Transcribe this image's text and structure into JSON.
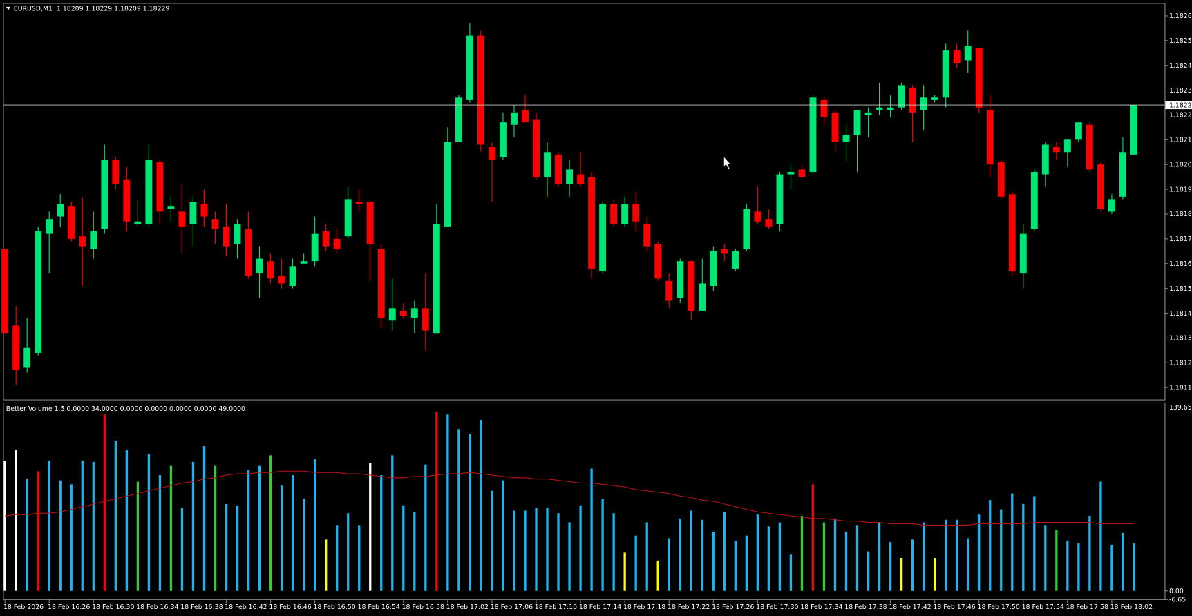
{
  "chart_data": [
    {
      "type": "candlestick",
      "title": "EURUSD,M1  1.18209 1.18229 1.18209 1.18229",
      "categories": [
        "18 Feb 2026",
        null,
        null,
        null,
        "18 Feb 16:26",
        null,
        null,
        null,
        "18 Feb 16:30",
        null,
        null,
        null,
        "18 Feb 16:34",
        null,
        null,
        null,
        "18 Feb 16:38",
        null,
        null,
        null,
        "18 Feb 16:42",
        null,
        null,
        null,
        "18 Feb 16:46",
        null,
        null,
        null,
        "18 Feb 16:50",
        null,
        null,
        null,
        "18 Feb 16:54",
        null,
        null,
        null,
        "18 Feb 16:58",
        null,
        null,
        null,
        "18 Feb 17:02",
        null,
        null,
        null,
        "18 Feb 17:06",
        null,
        null,
        null,
        "18 Feb 17:10",
        null,
        null,
        null,
        "18 Feb 17:14",
        null,
        null,
        null,
        "18 Feb 17:18",
        null,
        null,
        null,
        "18 Feb 17:22",
        null,
        null,
        null,
        "18 Feb 17:26",
        null,
        null,
        null,
        "18 Feb 17:30",
        null,
        null,
        null,
        "18 Feb 17:34",
        null,
        null,
        null,
        "18 Feb 17:38",
        null,
        null,
        null,
        "18 Feb 17:42",
        null,
        null,
        null,
        "18 Feb 17:46",
        null,
        null,
        null,
        "18 Feb 17:50",
        null,
        null,
        null,
        "18 Feb 17:54",
        null,
        null,
        null,
        "18 Feb 17:58",
        null,
        null,
        null,
        "18 Feb 18:02",
        null,
        null
      ],
      "open": [
        1.18171,
        1.1814,
        1.18123,
        1.18129,
        1.18177,
        1.18184,
        1.18188,
        1.18176,
        1.18171,
        1.18179,
        1.18207,
        1.18199,
        1.18181,
        1.18181,
        1.18206,
        1.18187,
        1.18186,
        1.18181,
        1.18189,
        1.18183,
        1.1818,
        1.18173,
        1.18179,
        1.18161,
        1.18166,
        1.1816,
        1.18156,
        1.18165,
        1.18166,
        1.18178,
        1.18175,
        1.18176,
        1.1819,
        1.1819,
        1.18171,
        1.18142,
        1.18146,
        1.18143,
        1.18147,
        1.18137,
        1.1818,
        1.18214,
        1.18231,
        1.18257,
        1.18212,
        1.18208,
        1.18221,
        1.18227,
        1.18223,
        1.182,
        1.18209,
        1.18197,
        1.18201,
        1.182,
        1.18162,
        1.18189,
        1.18181,
        1.18189,
        1.18181,
        1.18173,
        1.18158,
        1.18151,
        1.18166,
        1.18146,
        1.18156,
        1.18171,
        1.18163,
        1.18171,
        1.18186,
        1.18183,
        1.18181,
        1.18201,
        1.18203,
        1.18202,
        1.18231,
        1.18226,
        1.18214,
        1.18217,
        1.18225,
        1.18227,
        1.18227,
        1.18228,
        1.18236,
        1.18227,
        1.18231,
        1.18232,
        1.18251,
        1.18247,
        1.18252,
        1.18227,
        1.18206,
        1.18193,
        1.18161,
        1.18179,
        1.18201,
        1.18212,
        1.1821,
        1.18215,
        1.18221,
        1.18205,
        1.18186,
        1.18192,
        1.18209
      ],
      "high": [
        1.18171,
        1.18148,
        1.18143,
        1.1818,
        1.18186,
        1.18193,
        1.1819,
        1.18192,
        1.18186,
        1.18213,
        1.18208,
        1.18204,
        1.18191,
        1.18213,
        1.18207,
        1.18192,
        1.18197,
        1.18192,
        1.18195,
        1.18186,
        1.18189,
        1.18183,
        1.18186,
        1.18172,
        1.18169,
        1.18167,
        1.18167,
        1.18169,
        1.18184,
        1.18181,
        1.18179,
        1.18196,
        1.18195,
        1.1819,
        1.18173,
        1.18159,
        1.18149,
        1.1815,
        1.18161,
        1.18189,
        1.1822,
        1.18233,
        1.18262,
        1.18259,
        1.18214,
        1.18226,
        1.18229,
        1.18233,
        1.18226,
        1.18214,
        1.1821,
        1.18207,
        1.1821,
        1.18202,
        1.1819,
        1.18191,
        1.18192,
        1.18194,
        1.18184,
        1.18174,
        1.18161,
        1.18167,
        1.18166,
        1.18167,
        1.18172,
        1.18173,
        1.18171,
        1.18189,
        1.18196,
        1.18187,
        1.18202,
        1.18205,
        1.18205,
        1.18233,
        1.18232,
        1.18227,
        1.18221,
        1.18227,
        1.18228,
        1.18238,
        1.18233,
        1.18238,
        1.18237,
        1.18237,
        1.18233,
        1.18254,
        1.18254,
        1.18259,
        1.18252,
        1.18233,
        1.18207,
        1.18194,
        1.18181,
        1.18203,
        1.18214,
        1.18214,
        1.18215,
        1.18222,
        1.18222,
        1.18206,
        1.18193,
        1.18216,
        1.18229
      ],
      "low": [
        1.18137,
        1.18116,
        1.18121,
        1.18128,
        1.18161,
        1.1818,
        1.18174,
        1.18156,
        1.18167,
        1.18177,
        1.18195,
        1.18178,
        1.1818,
        1.1818,
        1.18181,
        1.18182,
        1.18169,
        1.18172,
        1.1818,
        1.18173,
        1.18168,
        1.18167,
        1.18159,
        1.18151,
        1.18157,
        1.18155,
        1.18155,
        1.18165,
        1.18164,
        1.1817,
        1.18169,
        1.18175,
        1.18186,
        1.18158,
        1.18139,
        1.18138,
        1.18143,
        1.18137,
        1.1813,
        1.18137,
        1.1818,
        1.18214,
        1.1823,
        1.1821,
        1.1819,
        1.18207,
        1.18216,
        1.18222,
        1.18199,
        1.18192,
        1.18196,
        1.18192,
        1.18196,
        1.18159,
        1.18161,
        1.1818,
        1.1818,
        1.18178,
        1.1817,
        1.18158,
        1.18147,
        1.18149,
        1.18142,
        1.18146,
        1.18154,
        1.18166,
        1.18162,
        1.1817,
        1.18181,
        1.18179,
        1.18178,
        1.18195,
        1.182,
        1.18201,
        1.18221,
        1.1821,
        1.18206,
        1.18202,
        1.18216,
        1.18225,
        1.18224,
        1.18227,
        1.18214,
        1.18219,
        1.1823,
        1.18228,
        1.18244,
        1.18242,
        1.18226,
        1.182,
        1.18191,
        1.1816,
        1.18155,
        1.18178,
        1.18196,
        1.18207,
        1.18204,
        1.18214,
        1.18202,
        1.18186,
        1.18185,
        1.18191,
        1.18209
      ],
      "close": [
        1.18137,
        1.18122,
        1.18131,
        1.18178,
        1.18183,
        1.18189,
        1.18175,
        1.18172,
        1.18178,
        1.18207,
        1.18197,
        1.18182,
        1.18182,
        1.18207,
        1.18186,
        1.18188,
        1.1818,
        1.1819,
        1.18184,
        1.18179,
        1.18172,
        1.18181,
        1.1816,
        1.18167,
        1.18159,
        1.18157,
        1.18164,
        1.18166,
        1.18177,
        1.18172,
        1.18171,
        1.18191,
        1.18189,
        1.18173,
        1.18143,
        1.18147,
        1.18144,
        1.18147,
        1.18138,
        1.18181,
        1.18214,
        1.18232,
        1.18257,
        1.18213,
        1.18207,
        1.18222,
        1.18226,
        1.18222,
        1.182,
        1.1821,
        1.18197,
        1.18203,
        1.18197,
        1.18163,
        1.18189,
        1.18181,
        1.18189,
        1.18182,
        1.18172,
        1.18159,
        1.1815,
        1.18166,
        1.18146,
        1.18157,
        1.1817,
        1.18169,
        1.1817,
        1.18187,
        1.18182,
        1.1818,
        1.18201,
        1.18202,
        1.182,
        1.18232,
        1.18224,
        1.18214,
        1.18217,
        1.18227,
        1.18226,
        1.18228,
        1.18228,
        1.18237,
        1.18226,
        1.18232,
        1.18232,
        1.18251,
        1.18246,
        1.18253,
        1.18228,
        1.18205,
        1.18192,
        1.18162,
        1.18177,
        1.18202,
        1.18213,
        1.1821,
        1.18215,
        1.18222,
        1.18203,
        1.18187,
        1.18191,
        1.1821,
        1.18229
      ],
      "up_color": "#00e676",
      "down_color": "#ff0000",
      "ylim": [
        1.1811,
        1.1827
      ],
      "yticks": [
        1.18265,
        1.18255,
        1.18245,
        1.18235,
        1.18225,
        1.18215,
        1.18205,
        1.18195,
        1.18185,
        1.18175,
        1.18165,
        1.18155,
        1.18145,
        1.18135,
        1.18125,
        1.18115
      ],
      "current_price": 1.18229
    },
    {
      "type": "bar",
      "title": "Better Volume 1.5 0.0000 34.0000 0.0000 0.0000 0.0000 0.0000 49.0000",
      "series": [
        {
          "values": [
            99,
            107,
            85,
            91,
            99,
            84,
            81,
            99,
            98,
            134,
            114,
            107,
            83,
            104,
            88,
            95,
            63,
            98,
            110,
            95,
            66,
            65,
            92,
            95,
            103,
            80,
            88,
            70,
            100,
            39,
            50,
            59,
            50,
            97,
            88,
            103,
            65,
            60,
            96,
            136,
            134,
            123,
            119,
            130,
            76,
            84,
            61,
            61,
            63,
            63,
            59,
            52,
            65,
            93,
            70,
            59,
            29,
            42,
            52,
            23,
            40,
            55,
            61,
            54,
            45,
            60,
            38,
            42,
            58,
            49,
            52,
            28,
            57,
            81,
            52,
            55,
            45,
            50,
            30,
            52,
            37,
            25,
            39,
            52,
            25,
            54,
            54,
            40,
            58,
            69,
            62,
            74,
            66,
            72,
            50,
            46,
            38,
            36,
            57,
            83,
            35,
            44,
            36
          ],
          "colors": [
            "#ffffff",
            "#ffffff",
            "#1eb4f0",
            "#ff0000",
            "#1eb4f0",
            "#1eb4f0",
            "#1eb4f0",
            "#1eb4f0",
            "#1eb4f0",
            "#ff0000",
            "#1eb4f0",
            "#1eb4f0",
            "#32cd32",
            "#1eb4f0",
            "#1eb4f0",
            "#32cd32",
            "#1eb4f0",
            "#1eb4f0",
            "#1eb4f0",
            "#32cd32",
            "#1eb4f0",
            "#1eb4f0",
            "#1eb4f0",
            "#1eb4f0",
            "#32cd32",
            "#1eb4f0",
            "#1eb4f0",
            "#1eb4f0",
            "#1eb4f0",
            "#ffff00",
            "#1eb4f0",
            "#1eb4f0",
            "#1eb4f0",
            "#ffffff",
            "#1eb4f0",
            "#1eb4f0",
            "#1eb4f0",
            "#1eb4f0",
            "#1eb4f0",
            "#ff0000",
            "#1eb4f0",
            "#1eb4f0",
            "#1eb4f0",
            "#1eb4f0",
            "#1eb4f0",
            "#1eb4f0",
            "#1eb4f0",
            "#1eb4f0",
            "#1eb4f0",
            "#1eb4f0",
            "#1eb4f0",
            "#1eb4f0",
            "#1eb4f0",
            "#1eb4f0",
            "#1eb4f0",
            "#1eb4f0",
            "#ffff00",
            "#1eb4f0",
            "#1eb4f0",
            "#ffff00",
            "#1eb4f0",
            "#1eb4f0",
            "#1eb4f0",
            "#1eb4f0",
            "#1eb4f0",
            "#1eb4f0",
            "#1eb4f0",
            "#1eb4f0",
            "#1eb4f0",
            "#1eb4f0",
            "#1eb4f0",
            "#1eb4f0",
            "#32cd32",
            "#ff0000",
            "#32cd32",
            "#1eb4f0",
            "#1eb4f0",
            "#1eb4f0",
            "#1eb4f0",
            "#1eb4f0",
            "#1eb4f0",
            "#ffff00",
            "#1eb4f0",
            "#1eb4f0",
            "#ffff00",
            "#1eb4f0",
            "#1eb4f0",
            "#1eb4f0",
            "#1eb4f0",
            "#1eb4f0",
            "#1eb4f0",
            "#1eb4f0",
            "#1eb4f0",
            "#1eb4f0",
            "#1eb4f0",
            "#32cd32",
            "#1eb4f0",
            "#1eb4f0",
            "#1eb4f0",
            "#1eb4f0",
            "#1eb4f0",
            "#1eb4f0",
            "#1eb4f0"
          ]
        },
        {
          "type": "line",
          "color": "#b41414",
          "values": [
            57,
            58,
            58,
            59,
            59,
            60,
            62,
            64,
            66,
            68,
            70,
            72,
            74,
            76,
            78,
            80,
            82,
            83,
            85,
            86,
            88,
            89,
            89,
            90,
            90,
            91,
            91,
            91,
            90,
            90,
            90,
            89,
            89,
            88,
            87,
            86,
            86,
            87,
            87,
            88,
            89,
            89,
            90,
            89,
            88,
            87,
            86,
            86,
            85,
            85,
            84,
            83,
            82,
            82,
            81,
            80,
            79,
            77,
            76,
            75,
            74,
            72,
            71,
            69,
            68,
            66,
            64,
            62,
            60,
            59,
            58,
            57,
            56,
            55,
            55,
            54,
            53,
            53,
            52,
            52,
            51,
            51,
            51,
            50,
            50,
            50,
            50,
            50,
            51,
            51,
            51,
            51,
            51,
            52,
            52,
            52,
            52,
            52,
            52,
            51,
            51,
            51,
            51
          ]
        }
      ],
      "ylim": [
        -6.65,
        139.65
      ],
      "yticks": [
        139.65,
        {
          "value": 0,
          "label": "0.00"
        },
        -6.65
      ]
    }
  ]
}
